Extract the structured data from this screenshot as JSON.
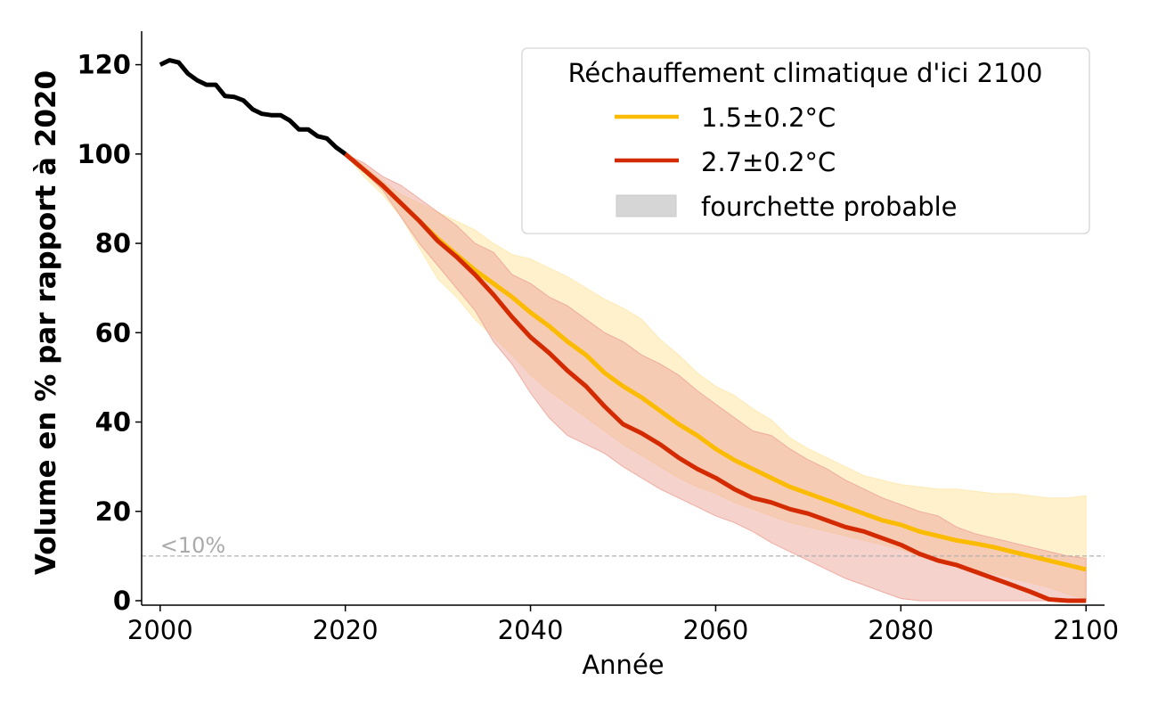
{
  "chart_data": {
    "type": "line",
    "title": "",
    "xlabel": "Année",
    "ylabel": "Volume en % par rapport à 2020",
    "xlim": [
      1998,
      2102
    ],
    "ylim": [
      -1,
      127.5
    ],
    "xticks": [
      2000,
      2020,
      2040,
      2060,
      2080,
      2100
    ],
    "yticks": [
      0,
      20,
      40,
      60,
      80,
      100,
      120
    ],
    "grid": false,
    "legend": {
      "title": "Réchauffement climatique d'ici 2100",
      "placement": "top-right",
      "entries": [
        {
          "label": "1.5±0.2°C",
          "kind": "line",
          "color": "#fbbb00"
        },
        {
          "label": "2.7±0.2°C",
          "kind": "line",
          "color": "#d42a00"
        },
        {
          "label": "fourchette probable",
          "kind": "patch",
          "color": "#d6d6d6"
        }
      ]
    },
    "annotations": [
      {
        "text": "<10%",
        "type": "hline",
        "y": 10,
        "color": "#b0b0b0",
        "style": "dashed"
      }
    ],
    "historical": {
      "name": "historique",
      "color": "#000000",
      "x": [
        2000,
        2001,
        2002,
        2003,
        2004,
        2005,
        2006,
        2007,
        2008,
        2009,
        2010,
        2011,
        2012,
        2013,
        2014,
        2015,
        2016,
        2017,
        2018,
        2019,
        2020
      ],
      "y": [
        120,
        121,
        120.5,
        118,
        116.5,
        115.5,
        115.5,
        113,
        112.8,
        112,
        110,
        109,
        108.7,
        108.7,
        107.5,
        105.5,
        105.5,
        104,
        103.5,
        101.5,
        100
      ]
    },
    "x": [
      2020,
      2022,
      2024,
      2026,
      2028,
      2030,
      2032,
      2034,
      2036,
      2038,
      2040,
      2042,
      2044,
      2046,
      2048,
      2050,
      2052,
      2054,
      2056,
      2058,
      2060,
      2062,
      2064,
      2066,
      2068,
      2070,
      2072,
      2074,
      2076,
      2078,
      2080,
      2082,
      2084,
      2086,
      2088,
      2090,
      2092,
      2094,
      2096,
      2098,
      2100
    ],
    "series": [
      {
        "name": "1.5±0.2°C",
        "color": "#fbbb00",
        "band_color": "#fde9b0",
        "median": [
          100,
          96.5,
          93,
          89,
          85,
          81,
          77.5,
          74,
          71,
          68,
          64.5,
          61.5,
          58,
          55,
          51,
          48,
          45.5,
          42.5,
          39.5,
          37,
          34,
          31.5,
          29.5,
          27.5,
          25.5,
          24,
          22.5,
          21,
          19.5,
          18,
          17,
          15.5,
          14.5,
          13.5,
          12.8,
          12,
          11,
          10,
          9,
          8,
          7
        ],
        "upper": [
          100,
          97.5,
          94,
          91,
          89,
          87,
          85,
          83,
          80,
          77.5,
          76.5,
          74.5,
          72.5,
          70,
          67.5,
          65.5,
          63,
          58.5,
          55,
          51,
          48,
          46,
          43,
          40.5,
          36.5,
          34,
          32,
          30,
          28,
          27,
          26,
          25.5,
          25,
          25,
          24.5,
          24,
          24,
          23.5,
          23,
          23,
          23.5
        ],
        "lower": [
          100,
          95,
          91,
          86,
          79,
          72,
          68,
          63,
          59,
          55,
          50.5,
          47,
          44,
          41,
          38,
          35,
          32.5,
          30,
          27.5,
          25.5,
          24,
          22,
          20.5,
          19,
          17.5,
          16.5,
          15.5,
          14.5,
          13.5,
          12.5,
          11.5,
          10,
          9,
          8,
          7,
          6,
          5,
          4,
          3,
          1.5,
          0.5
        ]
      },
      {
        "name": "2.7±0.2°C",
        "color": "#d42a00",
        "band_color": "#eea59a",
        "median": [
          100,
          96.5,
          93,
          89,
          85,
          80.5,
          77,
          73,
          68.5,
          63.5,
          59,
          55.5,
          51.5,
          48,
          43.5,
          39.5,
          37.5,
          35,
          32,
          29.5,
          27.5,
          25,
          23,
          22,
          20.5,
          19.5,
          18,
          16.5,
          15.5,
          14,
          12.5,
          10.5,
          9,
          8,
          6.5,
          5,
          3.5,
          2,
          0.3,
          0,
          0
        ],
        "upper": [
          100,
          98,
          95,
          93,
          90,
          87,
          84,
          80,
          78,
          73,
          71,
          68,
          66,
          63,
          60,
          58,
          55,
          53,
          50.5,
          47,
          44,
          41,
          38,
          37,
          34,
          31.5,
          29.5,
          27,
          25,
          23,
          21.5,
          20,
          19,
          16.5,
          15,
          14,
          13,
          12,
          11,
          10,
          9.5
        ],
        "lower": [
          100,
          96,
          92,
          86,
          80,
          75,
          70,
          65,
          58,
          53,
          46.5,
          41,
          37,
          35,
          33,
          30,
          27.5,
          25,
          23,
          21,
          19,
          17.5,
          15.5,
          13,
          11,
          9,
          7,
          5,
          3.5,
          2,
          0.5,
          0,
          0,
          0,
          0,
          0,
          0,
          0,
          0,
          0,
          0
        ]
      }
    ]
  }
}
